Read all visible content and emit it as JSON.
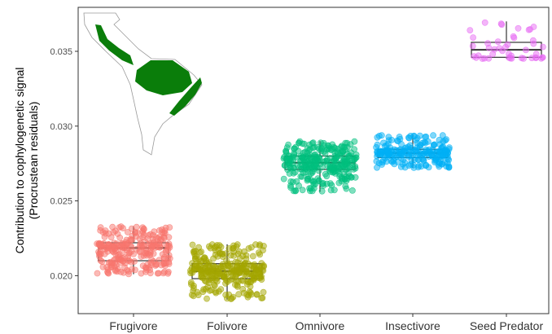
{
  "chart_data": {
    "type": "scatter",
    "subtype": "box-jitter",
    "title": "",
    "xlabel": "",
    "ylabel": "Contribution to cophylogenetic signal",
    "ylabel_sub": "(Procrustean residuals)",
    "ylim": [
      0.0183,
      0.0375
    ],
    "yticks": [
      "0.020",
      "0.025",
      "0.030",
      "0.035"
    ],
    "grid": false,
    "legend": "none",
    "inset": "map-of-the-americas-icon",
    "categories": [
      "Frugivore",
      "Folivore",
      "Omnivore",
      "Insectivore",
      "Seed Predator"
    ],
    "series": [
      {
        "color": "#F8766D",
        "n": 260,
        "min": 0.0201,
        "q1": 0.021,
        "median": 0.02185,
        "q3": 0.0222,
        "max": 0.0233
      },
      {
        "color": "#A3A500",
        "n": 300,
        "min": 0.0184,
        "q1": 0.0198,
        "median": 0.0203,
        "q3": 0.0208,
        "max": 0.0221
      },
      {
        "color": "#00BF7D",
        "n": 300,
        "min": 0.0256,
        "q1": 0.0271,
        "median": 0.02755,
        "q3": 0.028,
        "max": 0.029
      },
      {
        "color": "#00B0F6",
        "n": 220,
        "min": 0.0272,
        "q1": 0.0279,
        "median": 0.0282,
        "q3": 0.02845,
        "max": 0.0294
      },
      {
        "color": "#E76BF3",
        "n": 45,
        "min": 0.0345,
        "q1": 0.0346,
        "median": 0.0351,
        "q3": 0.0356,
        "max": 0.037
      }
    ]
  }
}
